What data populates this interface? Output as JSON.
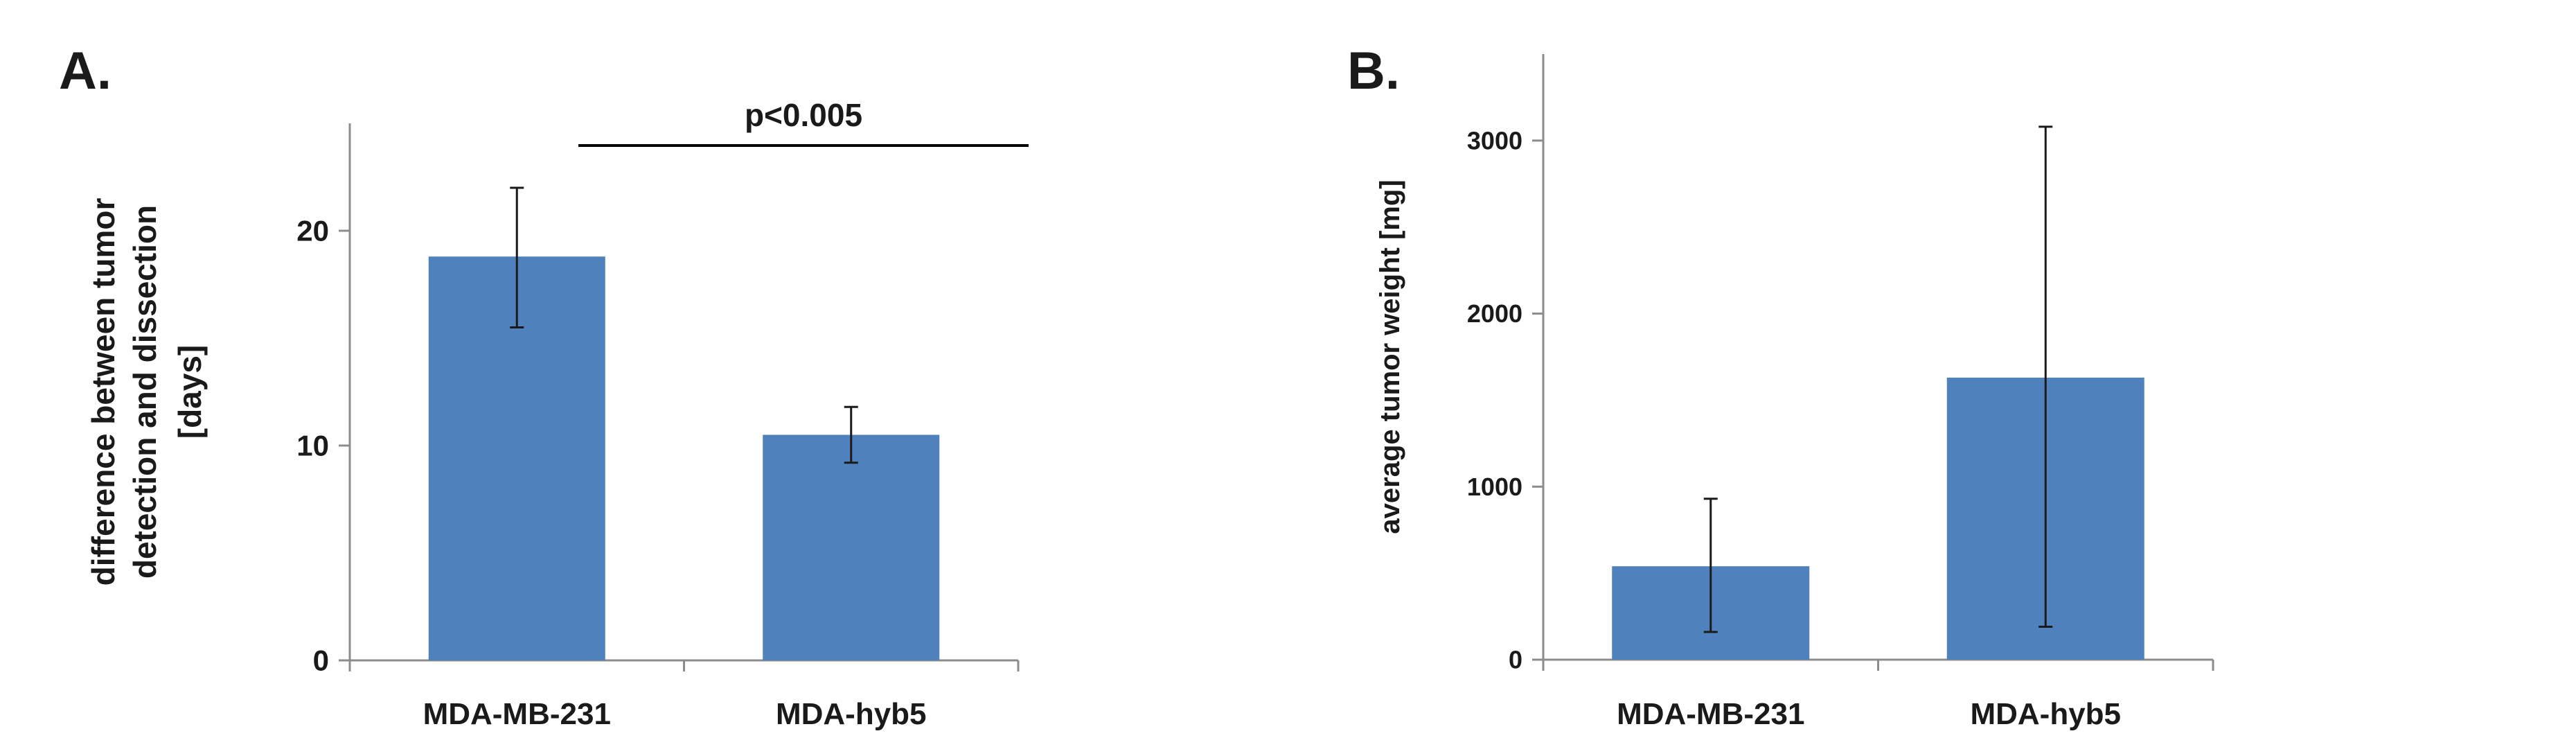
{
  "chart_data": [
    {
      "panel_label": "A.",
      "type": "bar",
      "categories": [
        "MDA-MB-231",
        "MDA-hyb5"
      ],
      "values": [
        18.8,
        10.5
      ],
      "error_bars": [
        [
          15.5,
          22.0
        ],
        [
          9.2,
          11.8
        ]
      ],
      "ylabel_lines": [
        "difference between tumor",
        "detection and dissection",
        "[days]"
      ],
      "ylim": [
        0,
        25
      ],
      "yticks": [
        0,
        10,
        20
      ],
      "grid": false,
      "bar_color": "#4F81BD",
      "annotation": "p<0.005"
    },
    {
      "panel_label": "B.",
      "type": "bar",
      "categories": [
        "MDA-MB-231",
        "MDA-hyb5"
      ],
      "values": [
        540,
        1630
      ],
      "error_bars": [
        [
          160,
          930
        ],
        [
          190,
          3080
        ]
      ],
      "ylabel_lines": [
        "average tumor weight [mg]"
      ],
      "ylim": [
        0,
        3500
      ],
      "yticks": [
        0,
        1000,
        2000,
        3000
      ],
      "grid": false,
      "bar_color": "#4F81BD"
    }
  ]
}
